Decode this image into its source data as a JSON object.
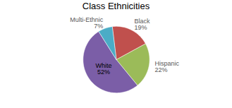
{
  "chart_data": {
    "type": "pie",
    "title": "Class Ethnicities",
    "categories": [
      "Black",
      "Hispanic",
      "White",
      "Multi-Ethnic"
    ],
    "values": [
      19,
      22,
      52,
      7
    ],
    "value_labels": [
      "19%",
      "22%",
      "52%",
      "7%"
    ],
    "colors": [
      "#c0504d",
      "#9bbb59",
      "#7b5ea7",
      "#4bacc6"
    ],
    "data_labels": true
  }
}
